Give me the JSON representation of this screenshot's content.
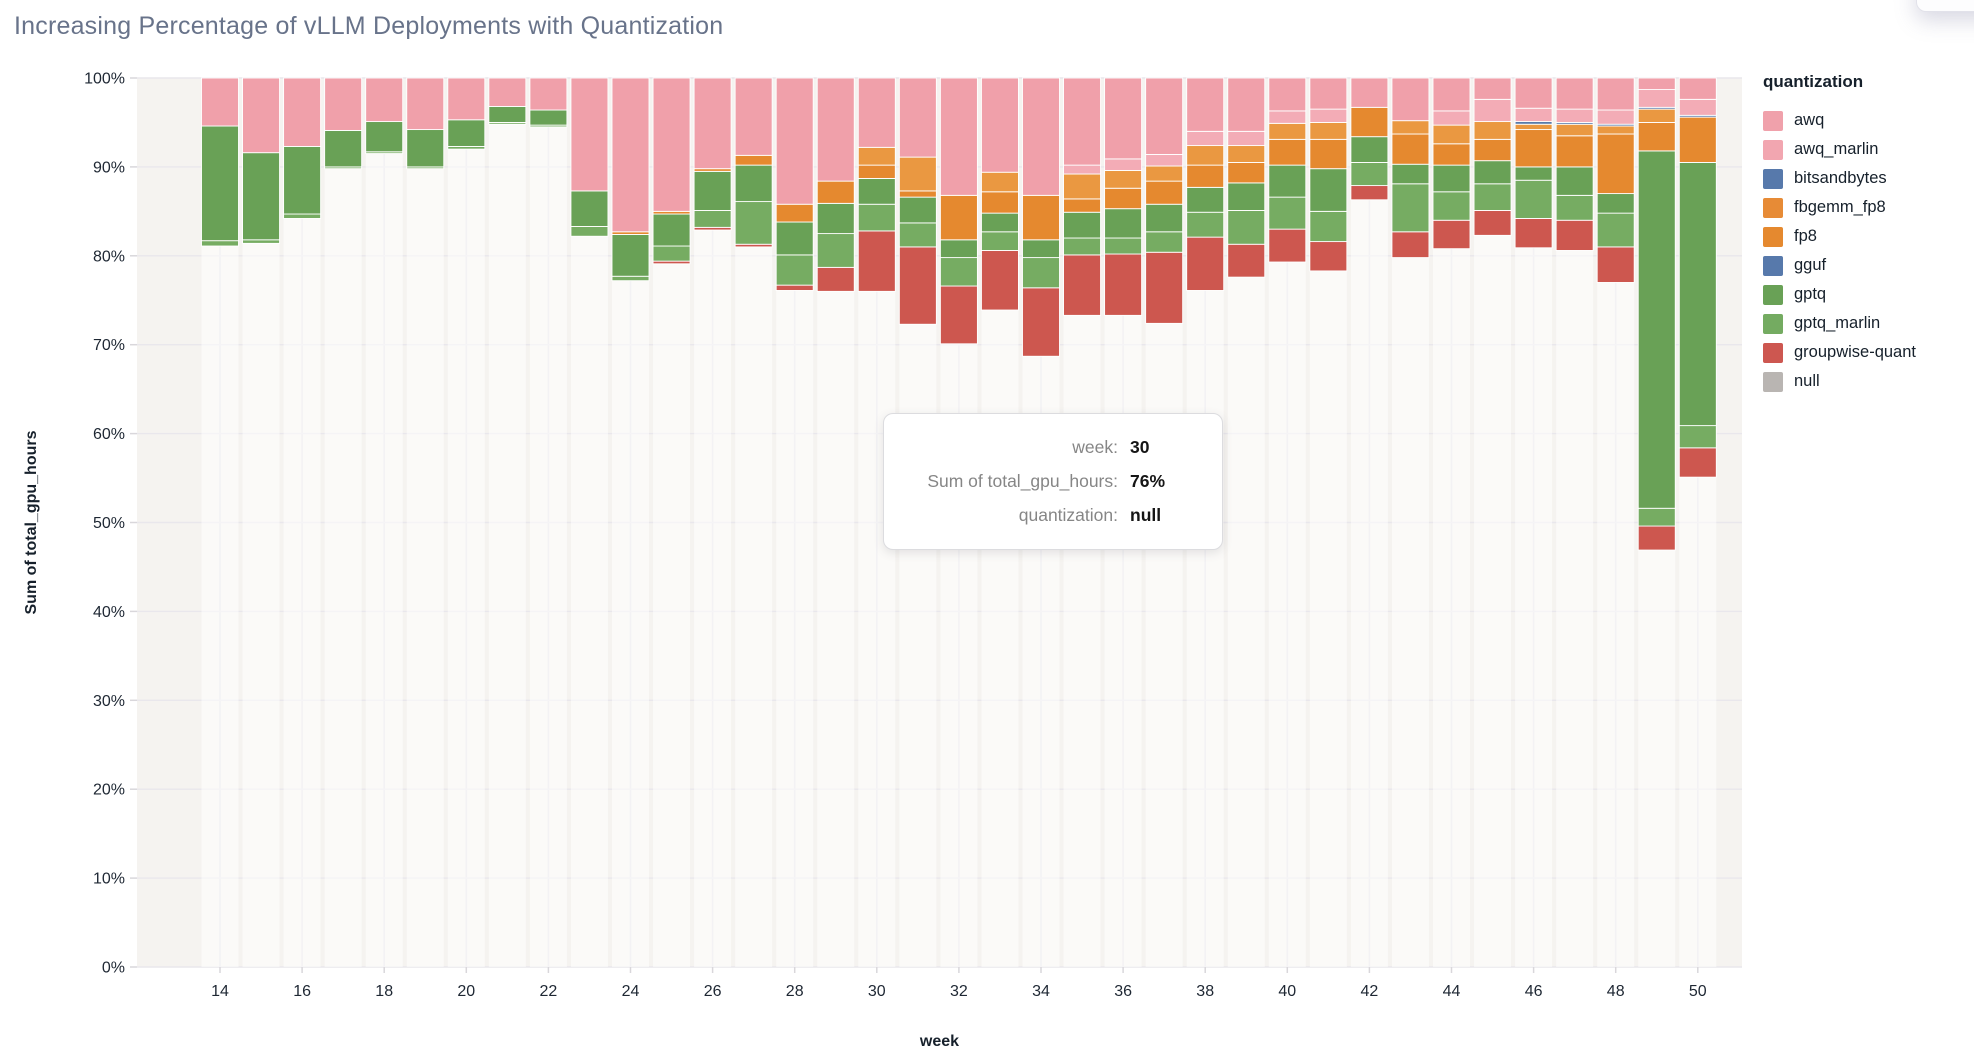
{
  "title": "Increasing Percentage of vLLM Deployments with Quantization",
  "legend": {
    "title": "quantization",
    "items": [
      {
        "label": "awq",
        "color": "#F0A1AB"
      },
      {
        "label": "awq_marlin",
        "color": "#F2A6B0"
      },
      {
        "label": "bitsandbytes",
        "color": "#5779AB"
      },
      {
        "label": "fbgemm_fp8",
        "color": "#E78B36"
      },
      {
        "label": "fp8",
        "color": "#E5892F"
      },
      {
        "label": "gguf",
        "color": "#5779AB"
      },
      {
        "label": "gptq",
        "color": "#69A156"
      },
      {
        "label": "gptq_marlin",
        "color": "#74AB61"
      },
      {
        "label": "groupwise-quant",
        "color": "#CD5750"
      },
      {
        "label": "null",
        "color": "#B9B5B2"
      }
    ]
  },
  "tooltip": {
    "rows": [
      {
        "label": "week:",
        "value": "30"
      },
      {
        "label": "Sum of total_gpu_hours:",
        "value": "76%"
      },
      {
        "label": "quantization:",
        "value": "null"
      }
    ]
  },
  "axes": {
    "x_label": "week",
    "y_label": "Sum of total_gpu_hours",
    "y_ticks": [
      "0%",
      "10%",
      "20%",
      "30%",
      "40%",
      "50%",
      "60%",
      "70%",
      "80%",
      "90%",
      "100%"
    ],
    "x_ticks": [
      14,
      16,
      18,
      20,
      22,
      24,
      26,
      28,
      30,
      32,
      34,
      36,
      38,
      40,
      42,
      44,
      46,
      48,
      50
    ]
  },
  "chart_data": {
    "type": "bar",
    "stacked": true,
    "normalized_percent": true,
    "title": "Increasing Percentage of vLLM Deployments with Quantization",
    "xlabel": "week",
    "ylabel": "Sum of total_gpu_hours",
    "ylim": [
      0,
      100
    ],
    "grid": true,
    "legend_position": "right",
    "x": [
      14,
      15,
      16,
      17,
      18,
      19,
      20,
      21,
      22,
      23,
      24,
      25,
      26,
      27,
      28,
      29,
      30,
      31,
      32,
      33,
      34,
      35,
      36,
      37,
      38,
      39,
      40,
      41,
      42,
      43,
      44,
      45,
      46,
      47,
      48,
      49,
      50
    ],
    "stack_order_bottom_to_top": [
      "null",
      "groupwise-quant",
      "gptq_marlin",
      "gptq",
      "gguf",
      "fp8",
      "fbgemm_fp8",
      "bitsandbytes",
      "awq_marlin",
      "awq"
    ],
    "series": [
      {
        "name": "awq",
        "color": "#F0A0AA",
        "values": [
          5.4,
          8.4,
          7.7,
          5.9,
          4.9,
          5.8,
          4.7,
          3.2,
          3.6,
          12.7,
          17.3,
          15.0,
          10.2,
          8.7,
          14.2,
          11.6,
          7.8,
          8.9,
          13.2,
          10.6,
          13.2,
          9.8,
          9.1,
          8.6,
          6.0,
          6.0,
          3.7,
          3.5,
          3.3,
          4.8,
          3.7,
          2.4,
          3.4,
          3.5,
          3.6,
          1.3,
          2.4
        ]
      },
      {
        "name": "awq_marlin",
        "color": "#F3ACB6",
        "values": [
          0,
          0,
          0,
          0,
          0,
          0,
          0,
          0,
          0,
          0,
          0,
          0,
          0,
          0,
          0,
          0,
          0,
          0,
          0,
          0,
          0,
          1.0,
          1.3,
          1.3,
          1.6,
          1.6,
          1.4,
          1.5,
          0,
          0,
          1.6,
          2.5,
          1.5,
          1.5,
          1.6,
          2.0,
          1.8
        ]
      },
      {
        "name": "bitsandbytes",
        "color": "#5578A9",
        "values": [
          0,
          0,
          0,
          0,
          0,
          0,
          0,
          0,
          0,
          0,
          0,
          0,
          0,
          0,
          0,
          0,
          0,
          0,
          0,
          0,
          0,
          0,
          0,
          0,
          0,
          0,
          0,
          0,
          0,
          0,
          0,
          0,
          0.3,
          0.2,
          0.2,
          0.2,
          0.2
        ]
      },
      {
        "name": "fbgemm_fp8",
        "color": "#EA9841",
        "values": [
          0,
          0,
          0,
          0,
          0,
          0,
          0,
          0,
          0,
          0,
          0,
          0,
          0,
          0,
          0,
          0,
          2.0,
          3.8,
          0,
          2.2,
          0,
          2.8,
          2.0,
          1.7,
          2.2,
          1.9,
          1.8,
          1.9,
          0,
          1.5,
          2.1,
          2.0,
          0.6,
          1.3,
          0.9,
          1.5,
          0
        ]
      },
      {
        "name": "fp8",
        "color": "#E5892F",
        "values": [
          0,
          0,
          0,
          0,
          0,
          0,
          0,
          0,
          0,
          0,
          0.3,
          0.3,
          0.3,
          1.1,
          2.0,
          2.5,
          1.5,
          0.7,
          5.0,
          2.4,
          5.0,
          1.5,
          2.3,
          2.6,
          2.5,
          2.3,
          2.9,
          3.3,
          3.3,
          3.4,
          2.4,
          2.4,
          4.2,
          3.5,
          6.7,
          3.2,
          5.1
        ]
      },
      {
        "name": "gguf",
        "color": "#5B7FAE",
        "values": [
          0,
          0,
          0,
          0,
          0,
          0,
          0,
          0,
          0,
          0,
          0,
          0,
          0,
          0,
          0,
          0,
          0,
          0,
          0,
          0,
          0,
          0,
          0,
          0,
          0,
          0,
          0,
          0,
          0,
          0,
          0,
          0,
          0,
          0,
          0,
          0,
          0
        ]
      },
      {
        "name": "gptq",
        "color": "#69A156",
        "values": [
          12.9,
          9.8,
          7.6,
          4.1,
          3.4,
          4.2,
          3.0,
          1.8,
          1.7,
          4.0,
          4.7,
          3.6,
          4.4,
          4.1,
          3.7,
          3.4,
          2.9,
          2.9,
          2.0,
          2.1,
          2.0,
          2.9,
          3.3,
          3.1,
          2.8,
          3.1,
          3.6,
          4.8,
          2.9,
          2.2,
          3.0,
          2.6,
          1.5,
          3.2,
          2.2,
          40.2,
          29.6
        ]
      },
      {
        "name": "gptq_marlin",
        "color": "#76AC62",
        "values": [
          0.6,
          0.4,
          0.5,
          0.2,
          0.2,
          0.2,
          0.3,
          0.2,
          0.2,
          1.1,
          0.5,
          1.7,
          1.9,
          4.8,
          3.4,
          3.8,
          3.0,
          2.7,
          3.2,
          2.1,
          3.4,
          1.9,
          1.8,
          2.3,
          2.8,
          3.8,
          3.6,
          3.4,
          2.6,
          5.4,
          3.2,
          3.0,
          4.3,
          2.8,
          3.8,
          2.0,
          2.5
        ]
      },
      {
        "name": "groupwise-quant",
        "color": "#CD574F",
        "values": [
          0,
          0,
          0,
          0,
          0,
          0,
          0,
          0,
          0,
          0,
          0,
          0.3,
          0.3,
          0.3,
          0.6,
          2.7,
          6.8,
          8.7,
          6.5,
          6.7,
          7.7,
          6.8,
          6.9,
          8.0,
          6.0,
          3.7,
          3.7,
          3.3,
          1.6,
          2.9,
          3.2,
          2.8,
          3.3,
          3.4,
          4.0,
          2.7,
          3.3
        ]
      },
      {
        "name": "null",
        "color": "rgba(255,255,255,0.55)",
        "values": [
          81.1,
          81.4,
          84.2,
          89.8,
          91.5,
          89.8,
          92.0,
          94.8,
          94.5,
          82.2,
          77.2,
          79.1,
          82.9,
          81.0,
          76.1,
          76.0,
          76.0,
          72.3,
          70.1,
          73.9,
          68.7,
          73.3,
          73.3,
          72.4,
          76.1,
          77.6,
          79.3,
          78.3,
          86.3,
          79.8,
          80.8,
          82.3,
          80.9,
          80.6,
          77.0,
          46.9,
          55.1
        ]
      }
    ]
  },
  "style": {
    "plot_bg": "#F5F3F0",
    "h_gridline": "#E9E7EC",
    "v_gridline": "#E5E3E7",
    "tick_color": "#D9D7DB",
    "segment_stroke": "#FFFFFF"
  }
}
